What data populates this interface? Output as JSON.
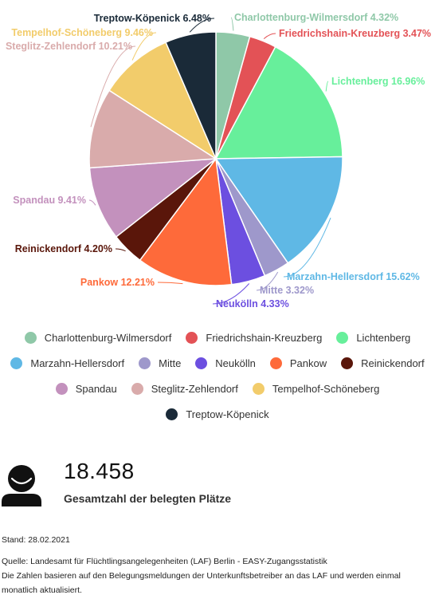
{
  "chart_data": {
    "type": "pie",
    "slices": [
      {
        "name": "Charlottenburg-Wilmersdorf",
        "value": 4.32,
        "label": "Charlottenburg-Wilmersdorf 4.32%",
        "color": "#8fc8a8"
      },
      {
        "name": "Friedrichshain-Kreuzberg",
        "value": 3.47,
        "label": "Friedrichshain-Kreuzberg 3.47%",
        "color": "#e35256"
      },
      {
        "name": "Lichtenberg",
        "value": 16.96,
        "label": "Lichtenberg 16.96%",
        "color": "#67ef9b"
      },
      {
        "name": "Marzahn-Hellersdorf",
        "value": 15.62,
        "label": "Marzahn-Hellersdorf 15.62%",
        "color": "#5fb8e5"
      },
      {
        "name": "Mitte",
        "value": 3.32,
        "label": "Mitte 3.32%",
        "color": "#9e98cb"
      },
      {
        "name": "Neukölln",
        "value": 4.33,
        "label": "Neukölln 4.33%",
        "color": "#6c4fe0"
      },
      {
        "name": "Pankow",
        "value": 12.21,
        "label": "Pankow 12.21%",
        "color": "#fe6a3a"
      },
      {
        "name": "Reinickendorf",
        "value": 4.2,
        "label": "Reinickendorf 4.20%",
        "color": "#5a160a"
      },
      {
        "name": "Spandau",
        "value": 9.41,
        "label": "Spandau 9.41%",
        "color": "#c391bd"
      },
      {
        "name": "Steglitz-Zehlendorf",
        "value": 10.21,
        "label": "Steglitz-Zehlendorf 10.21%",
        "color": "#d9abab"
      },
      {
        "name": "Tempelhof-Schöneberg",
        "value": 9.46,
        "label": "Tempelhof-Schöneberg 9.46%",
        "color": "#f2cc6b"
      },
      {
        "name": "Treptow-Köpenick",
        "value": 6.48,
        "label": "Treptow-Köpenick 6.48%",
        "color": "#1a2a38"
      }
    ],
    "legend_position": "bottom"
  },
  "stats": {
    "total_number": "18.458",
    "total_label": "Gesamtzahl der belegten Plätze",
    "icon": "person-icon"
  },
  "footer": {
    "stand": "Stand: 28.02.2021",
    "source": "Quelle: Landesamt für Flüchtlingsangelegenheiten (LAF) Berlin - EASY-Zugangsstatistik",
    "note": "Die Zahlen basieren auf den Belegungsmeldungen der Unterkunftsbetreiber an das LAF und werden einmal monatlich aktualisiert."
  }
}
